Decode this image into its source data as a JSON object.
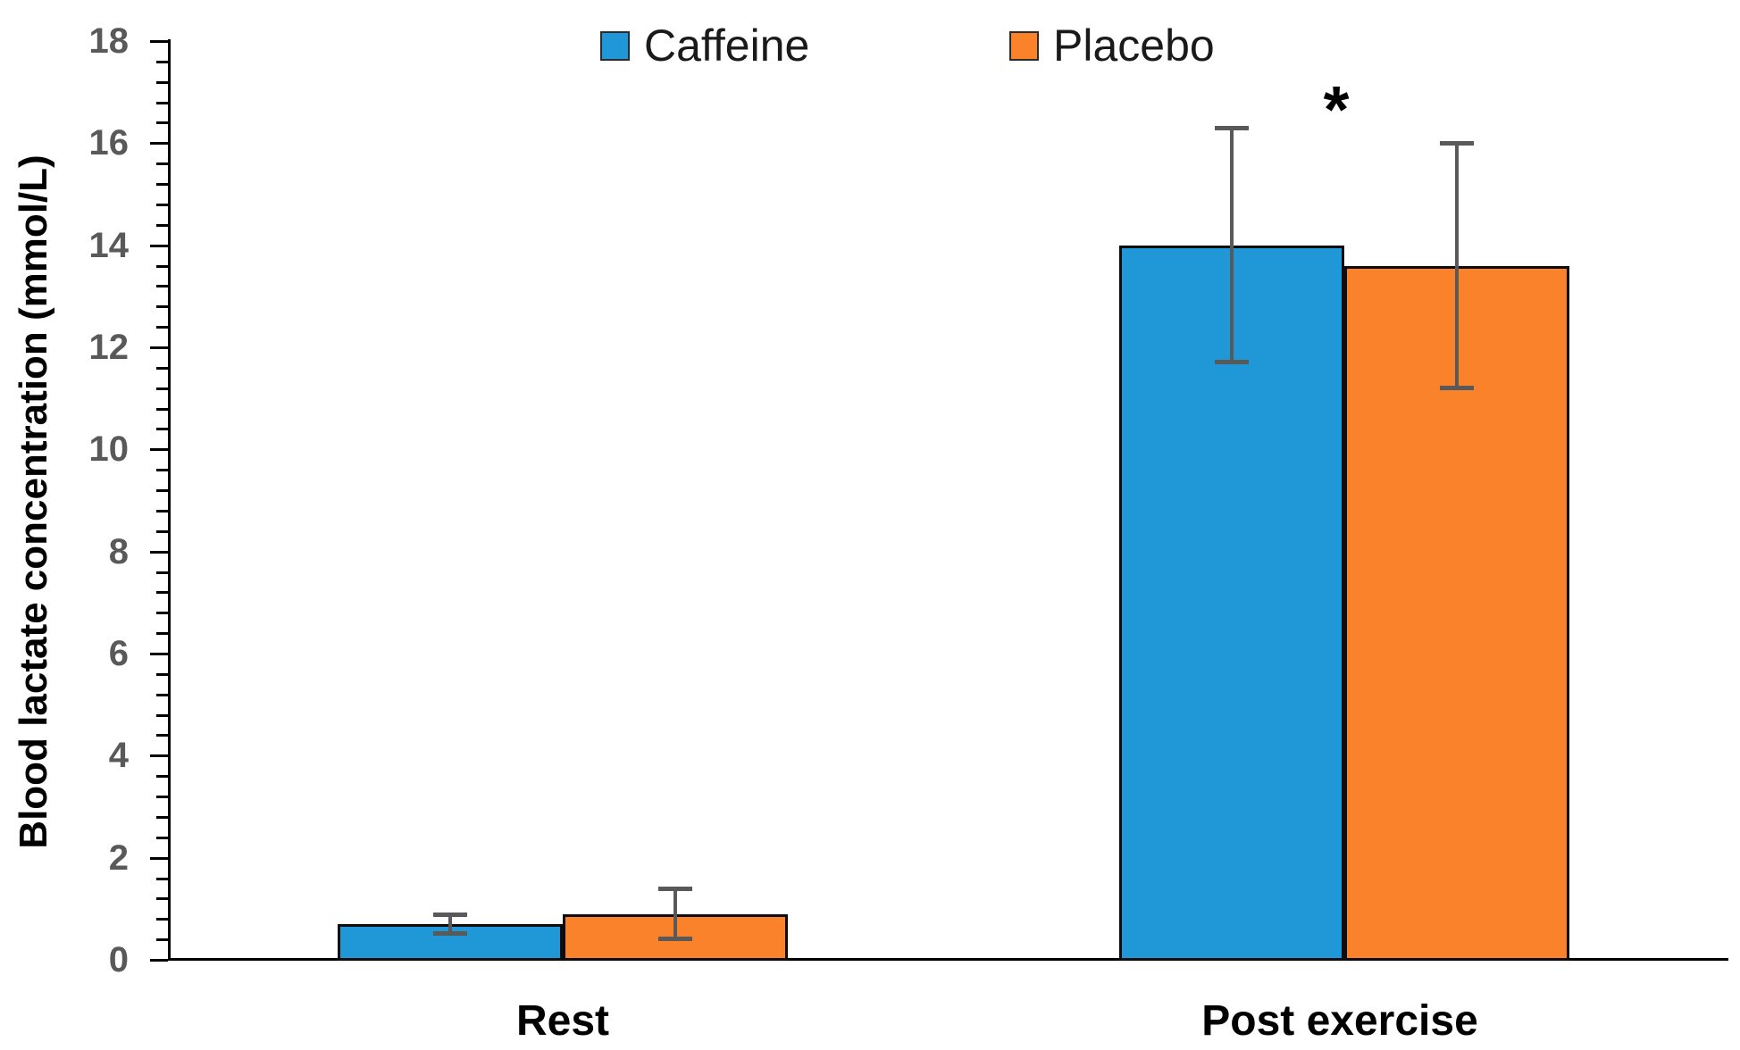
{
  "chart_data": {
    "type": "bar",
    "title": "",
    "xlabel": "",
    "ylabel": "Blood lactate concentration (mmol/L)",
    "categories": [
      "Rest",
      "Post exercise"
    ],
    "series": [
      {
        "name": "Caffeine",
        "color": "#2097D6",
        "values": [
          0.7,
          14.0
        ],
        "error_bars": [
          0.2,
          2.3
        ]
      },
      {
        "name": "Placebo",
        "color": "#F9822B",
        "values": [
          0.9,
          13.6
        ],
        "error_bars": [
          0.5,
          2.4
        ]
      }
    ],
    "ylim": [
      0,
      18
    ],
    "y_major_tick": 2,
    "y_minor_tick": 0.4,
    "y_tick_labels": [
      "0",
      "2",
      "4",
      "6",
      "8",
      "10",
      "12",
      "14",
      "16",
      "18"
    ],
    "grid": "off",
    "legend_position": "top",
    "annotations": [
      {
        "text": "*",
        "category": "Post exercise"
      }
    ],
    "colors": {
      "axis": "#000000",
      "tick_label": "#595959",
      "error_bar": "#595959",
      "bar_border": "#0d0d0d",
      "category_label": "#000000"
    }
  }
}
